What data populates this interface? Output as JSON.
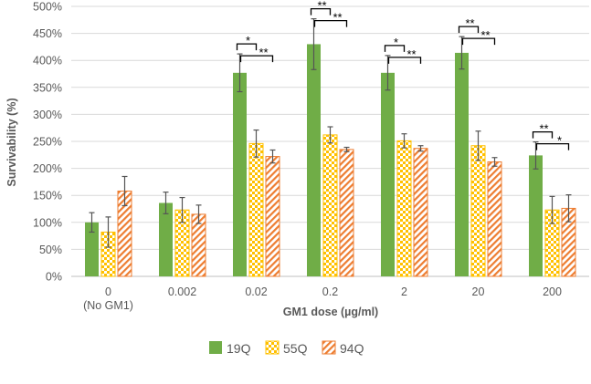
{
  "chart_data": {
    "type": "bar",
    "title": "",
    "xlabel": "GM1 dose (µg/ml)",
    "ylabel": "Survivability (%)",
    "ylim": [
      0,
      500
    ],
    "yticks": [
      "0%",
      "50%",
      "100%",
      "150%",
      "200%",
      "250%",
      "300%",
      "350%",
      "400%",
      "450%",
      "500%"
    ],
    "grid": true,
    "legend_position": "bottom",
    "categories": [
      "0",
      "0.002",
      "0.02",
      "0.2",
      "2",
      "20",
      "200"
    ],
    "category_sublabels": [
      "(No GM1)",
      "",
      "",
      "",
      "",
      "",
      ""
    ],
    "series": [
      {
        "name": "19Q",
        "color": "#70AD47",
        "pattern": "solid",
        "values": [
          100,
          136,
          377,
          430,
          377,
          414,
          224
        ],
        "errors": [
          18,
          20,
          35,
          47,
          32,
          30,
          25
        ]
      },
      {
        "name": "55Q",
        "color": "#FFC000",
        "pattern": "checker",
        "values": [
          82,
          123,
          246,
          262,
          251,
          242,
          123
        ],
        "errors": [
          28,
          23,
          25,
          15,
          13,
          27,
          25
        ]
      },
      {
        "name": "94Q",
        "color": "#ED7D31",
        "pattern": "diagonal",
        "values": [
          158,
          115,
          222,
          235,
          237,
          212,
          126
        ],
        "errors": [
          27,
          17,
          12,
          4,
          5,
          8,
          25
        ]
      }
    ],
    "significance": [
      {
        "category": "0.02",
        "vs_55Q": "*",
        "vs_94Q": "**"
      },
      {
        "category": "0.2",
        "vs_55Q": "**",
        "vs_94Q": "**"
      },
      {
        "category": "2",
        "vs_55Q": "*",
        "vs_94Q": "**"
      },
      {
        "category": "20",
        "vs_55Q": "**",
        "vs_94Q": "**"
      },
      {
        "category": "200",
        "vs_55Q": "**",
        "vs_94Q": "*"
      }
    ]
  }
}
